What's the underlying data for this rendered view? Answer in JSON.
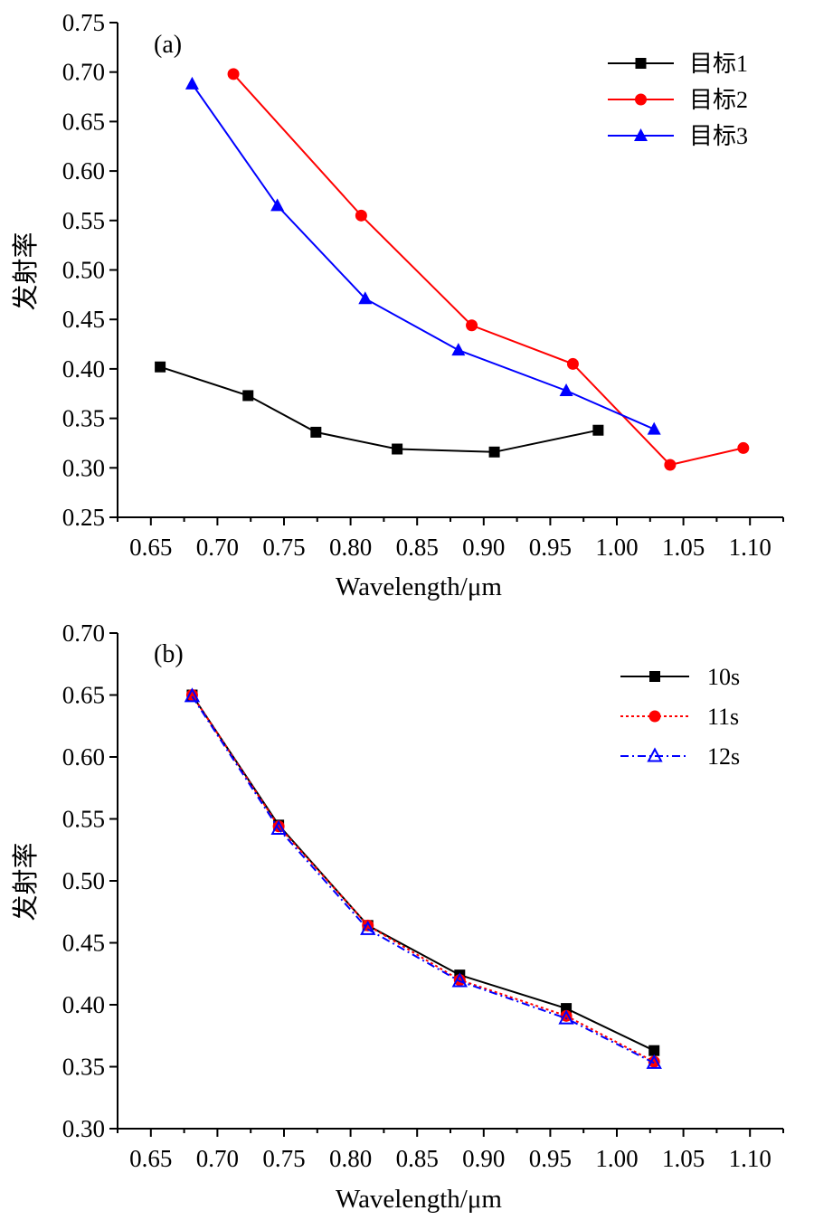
{
  "chart_data": [
    {
      "type": "line",
      "panel_label": "(a)",
      "xlabel": "Wavelength/μm",
      "ylabel": "发射率",
      "xlim": [
        0.625,
        1.125
      ],
      "ylim": [
        0.25,
        0.75
      ],
      "xticks": [
        "0.65",
        "0.70",
        "0.75",
        "0.80",
        "0.85",
        "0.90",
        "0.95",
        "1.00",
        "1.05",
        "1.10"
      ],
      "yticks": [
        "0.25",
        "0.30",
        "0.35",
        "0.40",
        "0.45",
        "0.50",
        "0.55",
        "0.60",
        "0.65",
        "0.70",
        "0.75"
      ],
      "legend_position": "top-right",
      "series": [
        {
          "name": "目标1",
          "color": "#000000",
          "marker": "square",
          "dash": "solid",
          "x": [
            0.657,
            0.723,
            0.774,
            0.835,
            0.908,
            0.986
          ],
          "y": [
            0.402,
            0.373,
            0.336,
            0.319,
            0.316,
            0.338
          ]
        },
        {
          "name": "目标2",
          "color": "#ff0000",
          "marker": "circle",
          "dash": "solid",
          "x": [
            0.712,
            0.808,
            0.891,
            0.967,
            1.04,
            1.095
          ],
          "y": [
            0.698,
            0.555,
            0.444,
            0.405,
            0.303,
            0.32
          ]
        },
        {
          "name": "目标3",
          "color": "#0000ff",
          "marker": "triangle",
          "dash": "solid",
          "x": [
            0.681,
            0.745,
            0.811,
            0.881,
            0.962,
            1.028
          ],
          "y": [
            0.688,
            0.565,
            0.471,
            0.419,
            0.378,
            0.339
          ]
        }
      ]
    },
    {
      "type": "line",
      "panel_label": "(b)",
      "xlabel": "Wavelength/μm",
      "ylabel": "发射率",
      "xlim": [
        0.625,
        1.125
      ],
      "ylim": [
        0.3,
        0.7
      ],
      "xticks": [
        "0.65",
        "0.70",
        "0.75",
        "0.80",
        "0.85",
        "0.90",
        "0.95",
        "1.00",
        "1.05",
        "1.10"
      ],
      "yticks": [
        "0.30",
        "0.35",
        "0.40",
        "0.45",
        "0.50",
        "0.55",
        "0.60",
        "0.65",
        "0.70"
      ],
      "legend_position": "top-right",
      "series": [
        {
          "name": "10s",
          "color": "#000000",
          "marker": "square",
          "dash": "solid",
          "x": [
            0.681,
            0.746,
            0.813,
            0.882,
            0.962,
            1.028
          ],
          "y": [
            0.65,
            0.545,
            0.464,
            0.424,
            0.397,
            0.363
          ]
        },
        {
          "name": "11s",
          "color": "#ff0000",
          "marker": "circle",
          "dash": "dotted",
          "x": [
            0.681,
            0.746,
            0.813,
            0.882,
            0.962,
            1.028
          ],
          "y": [
            0.65,
            0.544,
            0.464,
            0.42,
            0.391,
            0.354
          ]
        },
        {
          "name": "12s",
          "color": "#0000ff",
          "marker": "triangle-open",
          "dash": "dashdot",
          "x": [
            0.681,
            0.746,
            0.813,
            0.882,
            0.962,
            1.028
          ],
          "y": [
            0.649,
            0.542,
            0.461,
            0.419,
            0.389,
            0.353
          ]
        }
      ]
    }
  ]
}
